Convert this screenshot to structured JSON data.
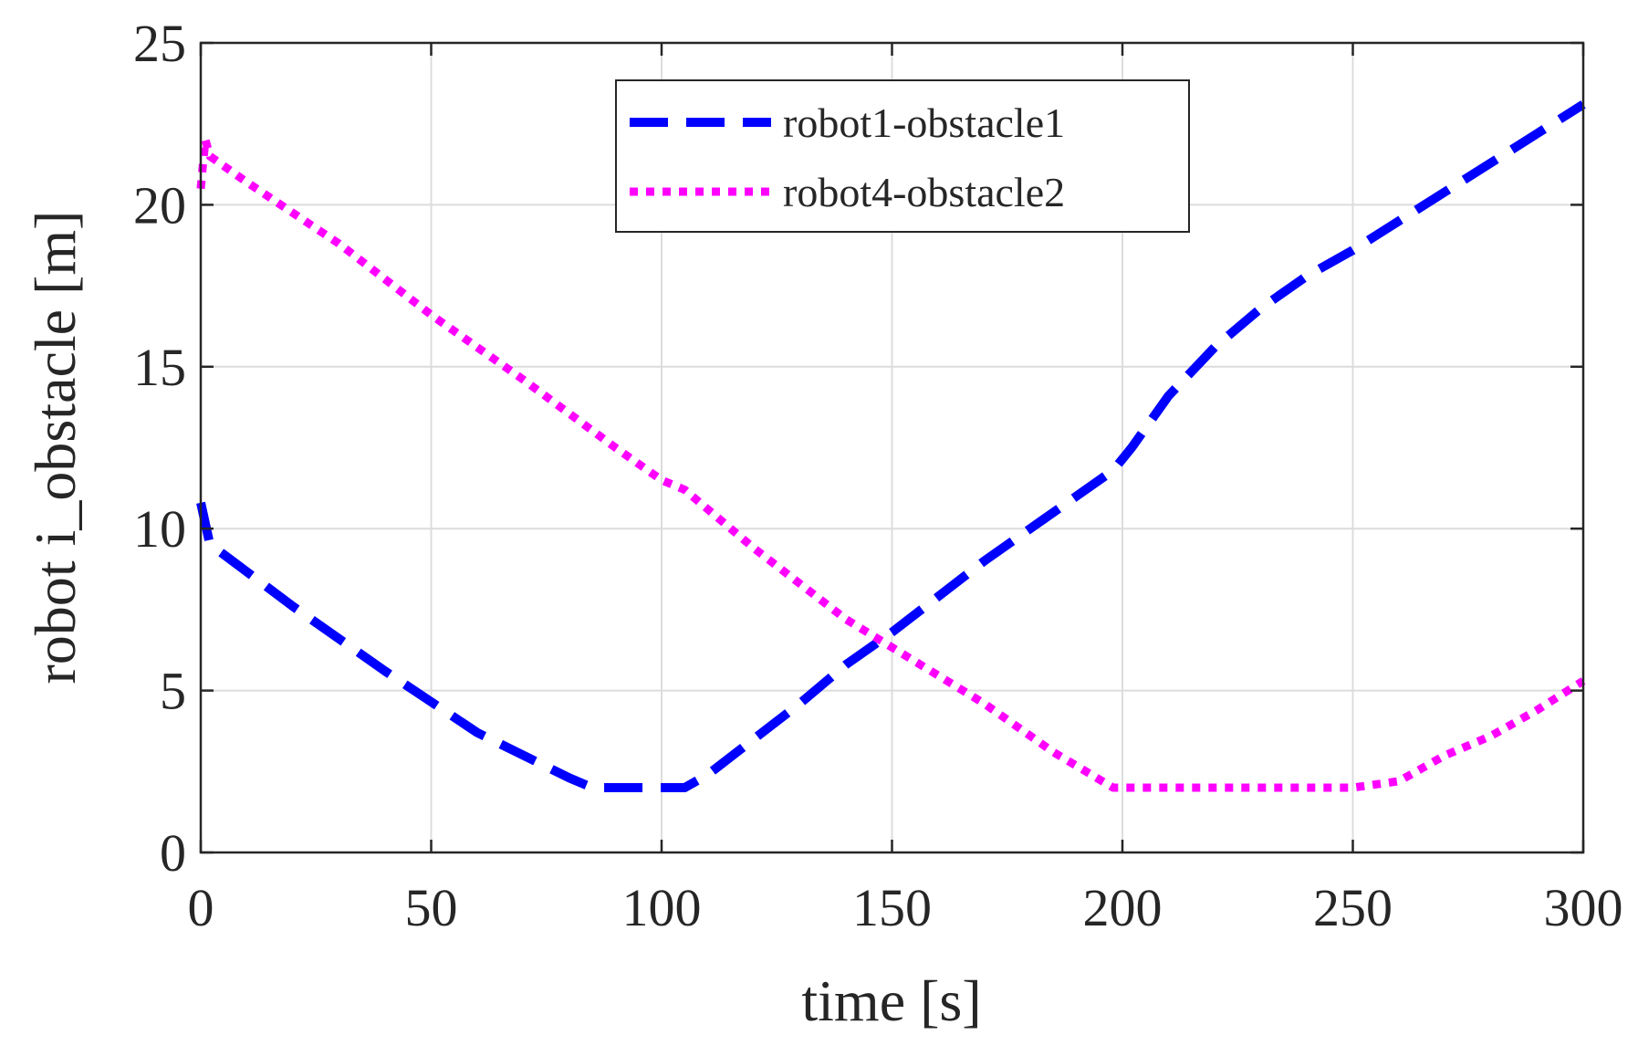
{
  "chart_data": {
    "type": "line",
    "xlabel": "time [s]",
    "ylabel": "robot i_obstacle [m]",
    "xlim": [
      0,
      300
    ],
    "ylim": [
      0,
      25
    ],
    "xticks": [
      0,
      50,
      100,
      150,
      200,
      250,
      300
    ],
    "xtick_labels": [
      "0",
      "50",
      "100",
      "150",
      "200",
      "250",
      "300"
    ],
    "yticks": [
      0,
      5,
      10,
      15,
      20,
      25
    ],
    "ytick_labels": [
      "0",
      "5",
      "10",
      "15",
      "20",
      "25"
    ],
    "grid": true,
    "legend_position": "top-center",
    "series": [
      {
        "name": "robot1-obstacle1",
        "color": "#0000ff",
        "line_style": "dashed",
        "x": [
          0,
          2,
          5,
          20,
          40,
          60,
          80,
          85,
          90,
          95,
          100,
          105,
          110,
          120,
          130,
          140,
          150,
          160,
          170,
          180,
          190,
          198,
          202,
          210,
          220,
          230,
          240,
          250,
          260,
          270,
          280,
          290,
          300
        ],
        "y": [
          10.8,
          9.5,
          9.2,
          7.6,
          5.6,
          3.7,
          2.3,
          2.0,
          2.0,
          2.0,
          2.0,
          2.0,
          2.4,
          3.5,
          4.6,
          5.8,
          6.8,
          7.9,
          9.0,
          10.0,
          11.0,
          11.8,
          12.5,
          14.1,
          15.6,
          16.8,
          17.8,
          18.6,
          19.5,
          20.4,
          21.3,
          22.2,
          23.1
        ]
      },
      {
        "name": "robot4-obstacle2",
        "color": "#ff00ff",
        "line_style": "dotted",
        "x": [
          0,
          0.5,
          1,
          2,
          10,
          30,
          50,
          70,
          90,
          100,
          105,
          120,
          140,
          155,
          170,
          185,
          198,
          210,
          230,
          250,
          260,
          270,
          280,
          290,
          300
        ],
        "y": [
          20.5,
          21.3,
          22.0,
          21.5,
          20.7,
          18.8,
          16.6,
          14.6,
          12.5,
          11.5,
          11.2,
          9.4,
          7.2,
          5.9,
          4.6,
          3.1,
          2.0,
          2.0,
          2.0,
          2.0,
          2.2,
          3.0,
          3.6,
          4.4,
          5.3
        ]
      }
    ]
  }
}
